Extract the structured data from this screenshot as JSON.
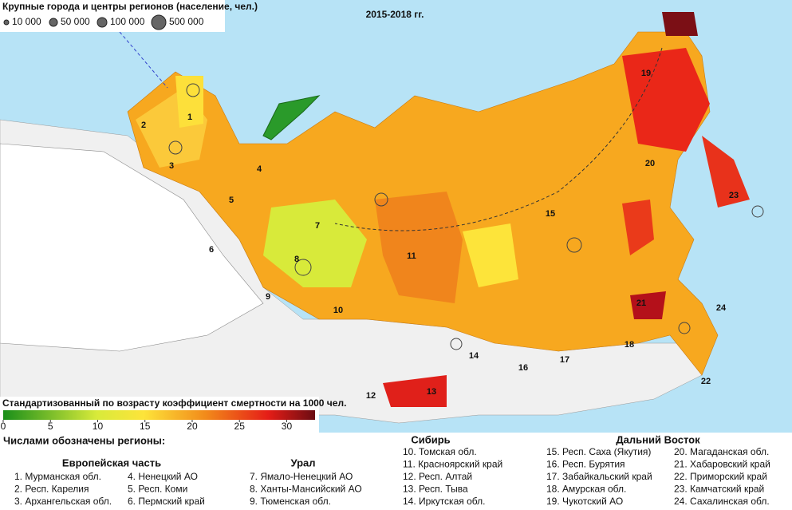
{
  "period": "2015-2018 гг.",
  "city_legend": {
    "title": "Крупные города и центры регионов (население, чел.)",
    "items": [
      "10 000",
      "50 000",
      "100 000",
      "500 000"
    ]
  },
  "colorbar": {
    "title": "Стандартизованный по возрасту коэффициент смертности на 1000 чел.",
    "range": [
      0,
      33
    ],
    "ticks": [
      0,
      5,
      10,
      15,
      20,
      25,
      30
    ]
  },
  "map_labels": [
    "1",
    "2",
    "3",
    "4",
    "5",
    "6",
    "7",
    "8",
    "9",
    "10",
    "11",
    "12",
    "13",
    "14",
    "15",
    "16",
    "17",
    "18",
    "19",
    "20",
    "21",
    "22",
    "23",
    "24"
  ],
  "key": {
    "heading": "Числами обозначены регионы:",
    "groups": [
      {
        "name": "Европейская часть",
        "items": [
          "1. Мурманская обл.",
          "2. Респ. Карелия",
          "3. Архангельская обл.",
          "4. Ненецкий АО",
          "5. Респ. Коми",
          "6. Пермский край"
        ]
      },
      {
        "name": "Урал",
        "items": [
          "7. Ямало-Ненецкий АО",
          "8. Ханты-Мансийский АО",
          "9. Тюменская обл."
        ]
      },
      {
        "name": "Сибирь",
        "items": [
          "10. Томская обл.",
          "11. Красноярский край",
          "12. Респ. Алтай",
          "13. Респ. Тыва",
          "14. Иркутская обл."
        ]
      },
      {
        "name": "Дальний Восток",
        "items": [
          "15. Респ. Саха (Якутия)",
          "16. Респ. Бурятия",
          "17. Забайкальский край",
          "18. Амурская обл.",
          "19. Чукотский АО",
          "20. Магаданская обл.",
          "21. Хабаровский край",
          "22. Приморский край",
          "23. Камчатский край",
          "24. Сахалинская обл."
        ]
      }
    ]
  }
}
